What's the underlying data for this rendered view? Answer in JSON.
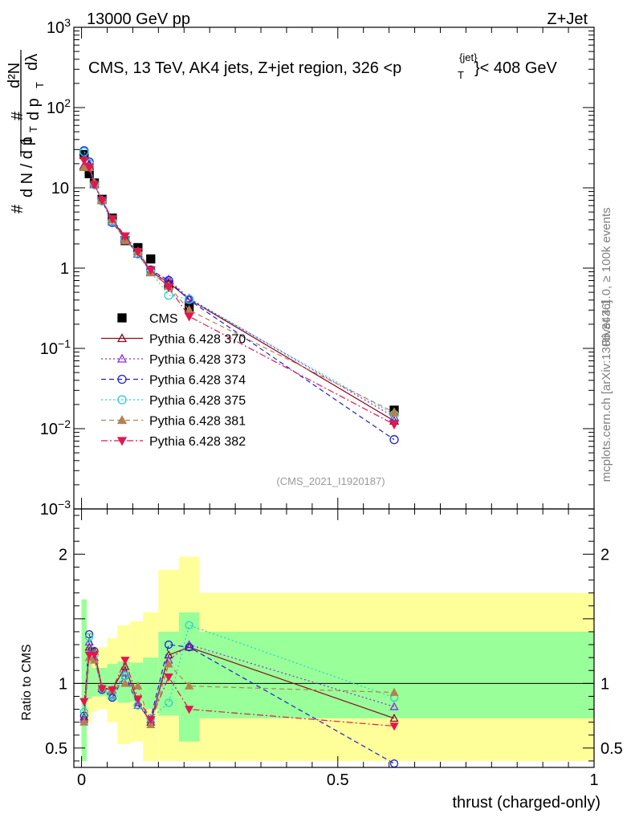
{
  "header": {
    "left": "13000 GeV pp",
    "right": "Z+Jet"
  },
  "side": {
    "rivet": "Rivet 4.1.0, ≥ 100k events",
    "mcplots": "mcplots.cern.ch [arXiv:1306.3436]"
  },
  "chart_data": [
    {
      "type": "line",
      "title": "CMS, 13 TeV, AK4 jets, Z+jet region, 326 <p_T^{jet}< 408 GeV",
      "title_parts": {
        "a": "CMS, 13 TeV, AK4 jets, Z+jet region, 326 <p",
        "sup": "{jet}",
        "sub": "T",
        "b": "}< 408 GeV"
      },
      "ylabel_parts": {
        "one": "1",
        "hash": "#",
        "dN": "d N / d p",
        "T": "T",
        "d2N": "d²N",
        "dpT": "d p",
        "dl": "dλ"
      },
      "watermark": "(CMS_2021_I1920187)",
      "yscale": "log",
      "ylim": [
        0.001,
        1000
      ],
      "y_ticks": [
        {
          "v": 0.001,
          "base": "10",
          "exp": "−3"
        },
        {
          "v": 0.01,
          "base": "10",
          "exp": "−2"
        },
        {
          "v": 0.1,
          "base": "10",
          "exp": "−1"
        },
        {
          "v": 1,
          "text": "1"
        },
        {
          "v": 10,
          "text": "10"
        },
        {
          "v": 100,
          "base": "10",
          "exp": "2"
        },
        {
          "v": 1000,
          "base": "10",
          "exp": "3"
        }
      ],
      "x": [
        0.005,
        0.015,
        0.025,
        0.04,
        0.06,
        0.085,
        0.11,
        0.135,
        0.17,
        0.21,
        0.61
      ],
      "series": [
        {
          "name": "CMS",
          "values": [
            26,
            15,
            11.5,
            7.2,
            4.2,
            2.2,
            1.8,
            1.3,
            0.62,
            0.32,
            0.017
          ]
        },
        {
          "name": "Pythia 6.428 370",
          "values": [
            19,
            19,
            11,
            7,
            4,
            2.4,
            1.5,
            0.9,
            0.66,
            0.41,
            0.0125
          ]
        },
        {
          "name": "Pythia 6.428 373",
          "values": [
            18.5,
            20,
            11,
            7,
            3.8,
            2.3,
            1.5,
            0.9,
            0.72,
            0.42,
            0.014
          ]
        },
        {
          "name": "Pythia 6.428 374",
          "values": [
            29,
            21,
            11,
            6.9,
            3.7,
            2.3,
            1.5,
            0.95,
            0.7,
            0.4,
            0.0073
          ]
        },
        {
          "name": "Pythia 6.428 375",
          "values": [
            28,
            20,
            11,
            6.9,
            3.8,
            2.3,
            1.5,
            0.9,
            0.46,
            0.41,
            0.015
          ]
        },
        {
          "name": "Pythia 6.428 381",
          "values": [
            18,
            18,
            11.5,
            7,
            4,
            2.2,
            1.6,
            0.88,
            0.6,
            0.3,
            0.016
          ]
        },
        {
          "name": "Pythia 6.428 382",
          "values": [
            22,
            18,
            11,
            7,
            4.1,
            2.5,
            1.6,
            0.95,
            0.58,
            0.25,
            0.0113
          ]
        }
      ]
    },
    {
      "type": "line",
      "ylabel": "Ratio to CMS",
      "xlabel": "thrust (charged-only)",
      "ylim": [
        0.35,
        2.35
      ],
      "xlim": [
        -0.015,
        1.0
      ],
      "x_ticks": [
        {
          "v": 0,
          "text": "0"
        },
        {
          "v": 0.5,
          "text": "0.5"
        },
        {
          "v": 1,
          "text": "1"
        }
      ],
      "y_ticks": [
        {
          "v": 0.5,
          "text": "0.5"
        },
        {
          "v": 1,
          "text": "1"
        },
        {
          "v": 2,
          "text": "2"
        }
      ],
      "x": [
        0.005,
        0.015,
        0.025,
        0.04,
        0.06,
        0.085,
        0.11,
        0.135,
        0.17,
        0.21,
        0.61
      ],
      "bands": [
        {
          "lo": 0.0,
          "hi": 0.01,
          "y1": [
            0.4,
            1.65
          ],
          "y2": [
            0.4,
            1.65
          ]
        },
        {
          "lo": 0.01,
          "hi": 0.02,
          "y1": [
            0.88,
            1.18
          ],
          "y2": [
            0.7,
            1.4
          ]
        },
        {
          "lo": 0.02,
          "hi": 0.03,
          "y1": [
            0.9,
            1.12
          ],
          "y2": [
            0.78,
            1.28
          ]
        },
        {
          "lo": 0.03,
          "hi": 0.05,
          "y1": [
            0.9,
            1.12
          ],
          "y2": [
            0.8,
            1.28
          ]
        },
        {
          "lo": 0.05,
          "hi": 0.07,
          "y1": [
            0.87,
            1.15
          ],
          "y2": [
            0.7,
            1.35
          ]
        },
        {
          "lo": 0.07,
          "hi": 0.095,
          "y1": [
            0.85,
            1.17
          ],
          "y2": [
            0.53,
            1.45
          ]
        },
        {
          "lo": 0.095,
          "hi": 0.12,
          "y1": [
            0.86,
            1.16
          ],
          "y2": [
            0.55,
            1.48
          ]
        },
        {
          "lo": 0.12,
          "hi": 0.15,
          "y1": [
            0.8,
            1.2
          ],
          "y2": [
            0.4,
            1.55
          ]
        },
        {
          "lo": 0.15,
          "hi": 0.19,
          "y1": [
            0.75,
            1.4
          ],
          "y2": [
            0.4,
            1.88
          ]
        },
        {
          "lo": 0.19,
          "hi": 0.23,
          "y1": [
            0.55,
            1.55
          ],
          "y2": [
            0.4,
            1.98
          ]
        },
        {
          "lo": 0.23,
          "hi": 1.0,
          "y1": [
            0.73,
            1.4
          ],
          "y2": [
            0.4,
            1.7
          ]
        }
      ],
      "series": [
        {
          "name": "Pythia 6.428 370",
          "values": [
            0.74,
            1.28,
            1.25,
            0.97,
            0.95,
            1.13,
            0.85,
            0.7,
            1.22,
            1.28,
            0.73
          ]
        },
        {
          "name": "Pythia 6.428 373",
          "values": [
            0.72,
            1.32,
            1.2,
            0.96,
            0.91,
            1.08,
            0.83,
            0.72,
            1.18,
            1.3,
            0.82
          ]
        },
        {
          "name": "Pythia 6.428 374",
          "values": [
            0.75,
            1.38,
            1.25,
            0.95,
            0.89,
            1.06,
            0.83,
            0.73,
            1.3,
            1.28,
            0.38
          ]
        },
        {
          "name": "Pythia 6.428 375",
          "values": [
            0.78,
            1.36,
            1.22,
            0.96,
            0.9,
            1.06,
            0.83,
            0.73,
            0.85,
            1.45,
            0.89
          ]
        },
        {
          "name": "Pythia 6.428 381",
          "values": [
            0.7,
            1.2,
            1.18,
            0.97,
            0.95,
            1.0,
            0.98,
            0.68,
            1.15,
            0.98,
            0.93
          ]
        },
        {
          "name": "Pythia 6.428 382",
          "values": [
            0.86,
            1.22,
            1.22,
            0.96,
            0.95,
            1.18,
            0.88,
            0.72,
            1.05,
            0.8,
            0.67
          ]
        }
      ]
    }
  ],
  "styles": [
    {
      "name": "CMS",
      "color": "#000000",
      "marker": "square",
      "dash": "",
      "filled": true
    },
    {
      "name": "Pythia 6.428 370",
      "color": "#8b0a1f",
      "marker": "triangle-up",
      "dash": "",
      "filled": false
    },
    {
      "name": "Pythia 6.428 373",
      "color": "#8a2be2",
      "marker": "triangle-up",
      "dash": "2,3",
      "filled": false
    },
    {
      "name": "Pythia 6.428 374",
      "color": "#1f1fd6",
      "marker": "circle",
      "dash": "6,4",
      "filled": false
    },
    {
      "name": "Pythia 6.428 375",
      "color": "#22d3c7",
      "marker": "circle",
      "dash": "2,3",
      "filled": false
    },
    {
      "name": "Pythia 6.428 381",
      "color": "#b5814f",
      "marker": "triangle-up",
      "dash": "6,4",
      "filled": true
    },
    {
      "name": "Pythia 6.428 382",
      "color": "#e0184f",
      "marker": "triangle-down",
      "dash": "8,3,2,3",
      "filled": true
    }
  ],
  "band_colors": {
    "inner": "#99ff99",
    "outer": "#ffff99"
  }
}
